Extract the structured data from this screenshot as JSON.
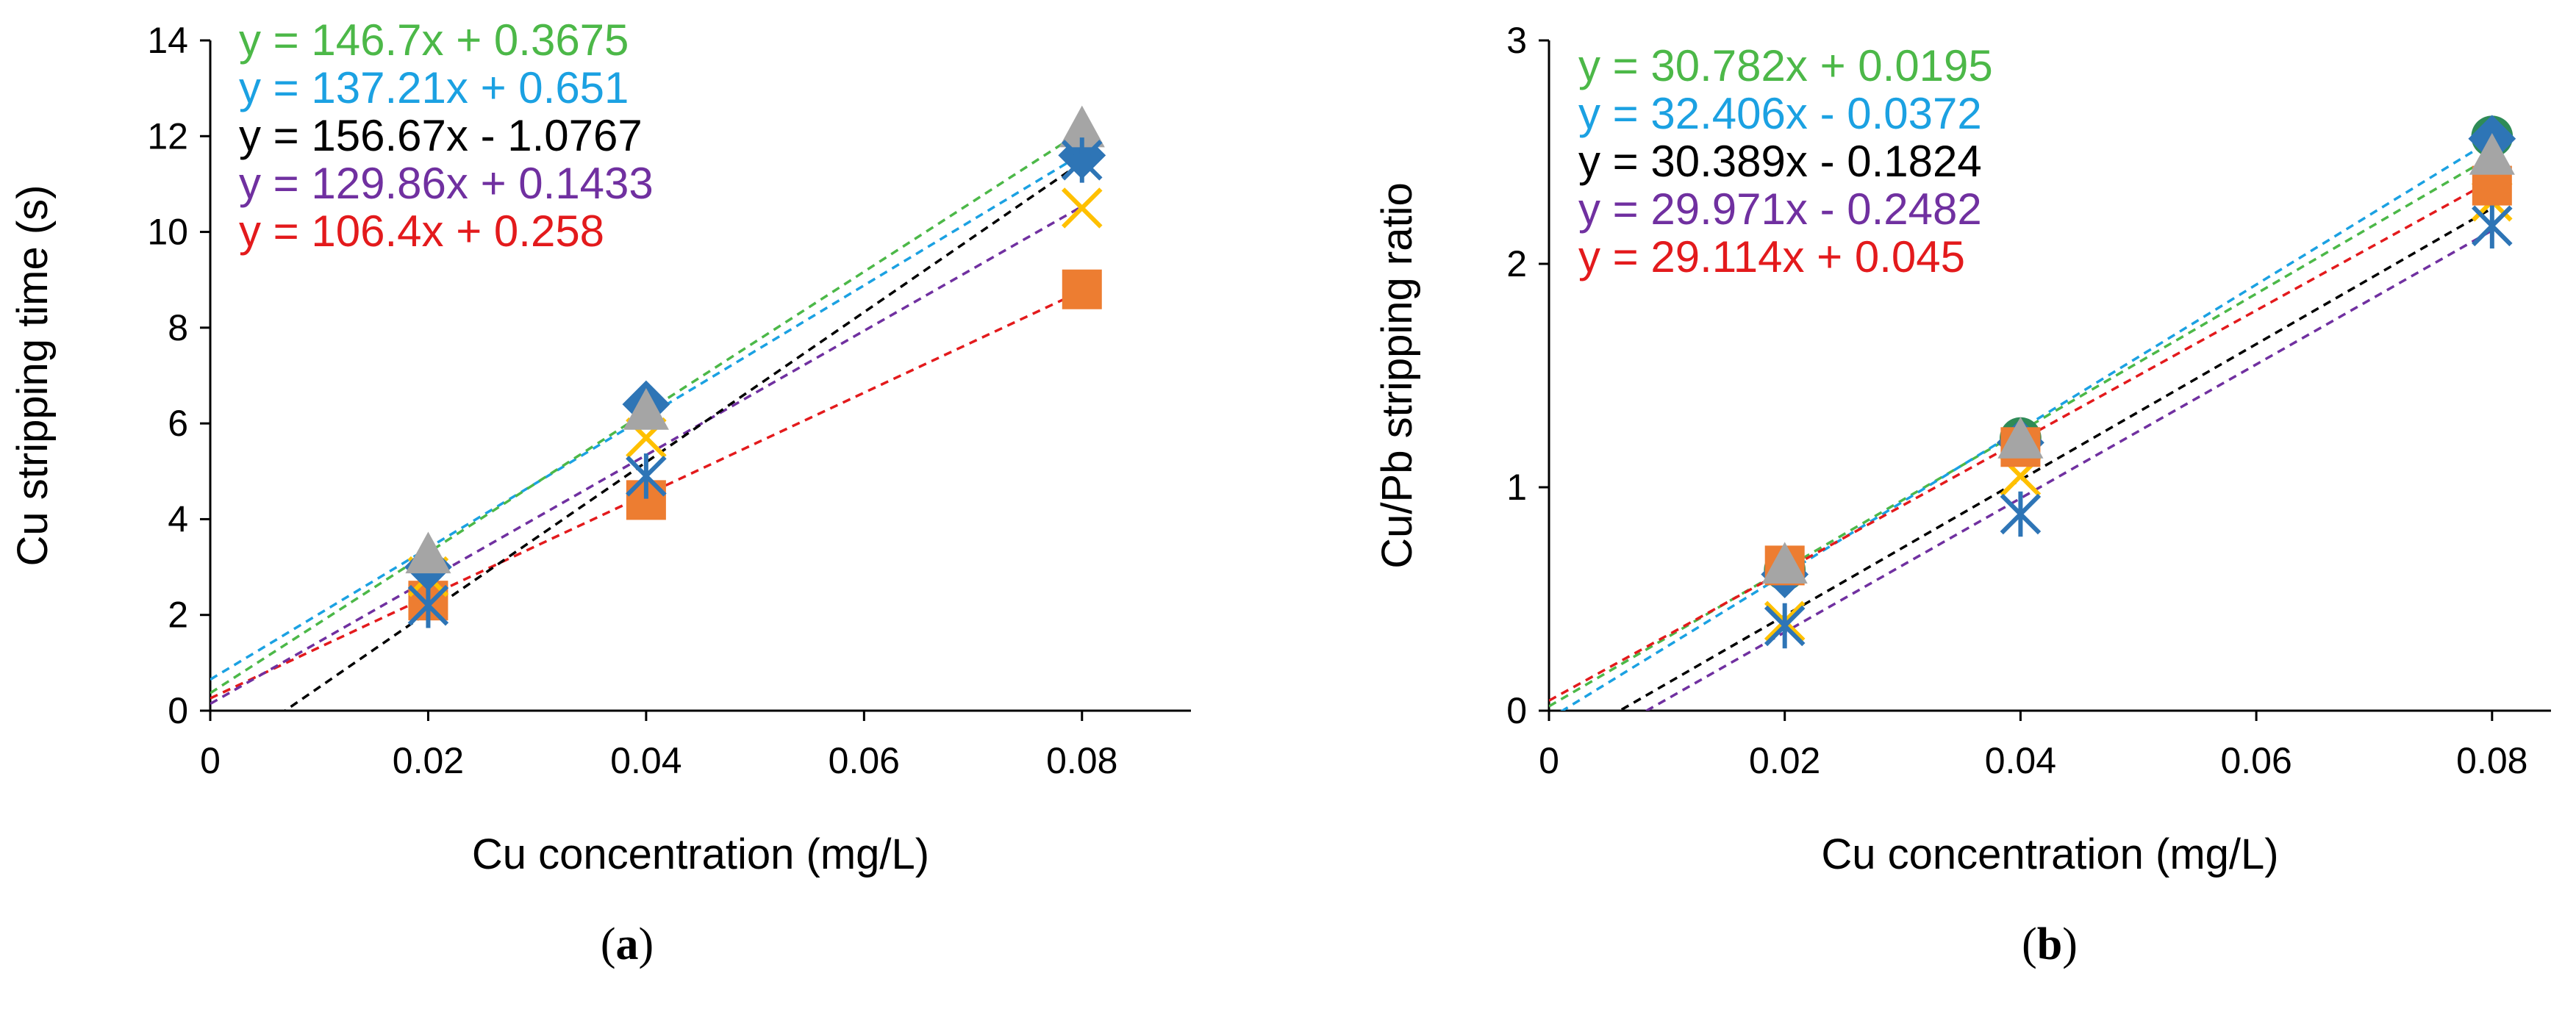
{
  "chart_data": [
    {
      "type": "scatter",
      "panel": "a",
      "caption": {
        "open": "(",
        "letter": "a",
        "close": ")"
      },
      "xlabel": "Cu concentration (mg/L)",
      "ylabel": "Cu stripping time (s)",
      "xlim": [
        0,
        0.09
      ],
      "ylim": [
        0,
        14
      ],
      "xticks": [
        0,
        0.02,
        0.04,
        0.06,
        0.08
      ],
      "xtick_labels": [
        "0",
        "0.02",
        "0.04",
        "0.06",
        "0.08"
      ],
      "yticks": [
        0,
        2,
        4,
        6,
        8,
        10,
        12,
        14
      ],
      "ytick_labels": [
        "0",
        "2",
        "4",
        "6",
        "8",
        "10",
        "12",
        "14"
      ],
      "x": [
        0.02,
        0.04,
        0.08
      ],
      "series": [
        {
          "name": "orange squares",
          "marker": "square",
          "color": "#ED7D31",
          "line_color": "#E31A1C",
          "values": [
            2.3,
            4.4,
            8.8
          ],
          "fit": {
            "slope": 106.4,
            "intercept": 0.258
          },
          "equation": "y = 106.4x + 0.258"
        },
        {
          "name": "yellow crosses",
          "marker": "x",
          "color": "#FFC000",
          "line_color": "#7030A0",
          "values": [
            2.8,
            5.7,
            10.5
          ],
          "fit": {
            "slope": 129.86,
            "intercept": 0.1433
          },
          "equation": "y = 129.86x + 0.1433"
        },
        {
          "name": "blue diamonds",
          "marker": "diamond",
          "color": "#2E75B6",
          "line_color": "#1BA1E2",
          "values": [
            3.0,
            6.4,
            11.6
          ],
          "fit": {
            "slope": 137.21,
            "intercept": 0.651
          },
          "equation": "y = 137.21x + 0.651"
        },
        {
          "name": "grey triangles",
          "marker": "triangle",
          "color": "#A5A5A5",
          "line_color": "#4CB848",
          "values": [
            3.2,
            6.2,
            12.1
          ],
          "fit": {
            "slope": 146.7,
            "intercept": 0.3675
          },
          "equation": "y = 146.7x + 0.3675"
        },
        {
          "name": "blue stars",
          "marker": "star",
          "color": "#2E75B6",
          "line_color": "#000000",
          "values": [
            2.2,
            4.9,
            11.5
          ],
          "fit": {
            "slope": 156.67,
            "intercept": -1.0767
          },
          "equation": "y = 156.67x - 1.0767"
        }
      ],
      "legend_order": [
        3,
        2,
        4,
        1,
        0
      ]
    },
    {
      "type": "scatter",
      "panel": "b",
      "caption": {
        "open": "(",
        "letter": "b",
        "close": ")"
      },
      "xlabel": "Cu concentration (mg/L)",
      "ylabel": "Cu/Pb stripping ratio",
      "xlim": [
        0,
        0.085
      ],
      "ylim": [
        0,
        3
      ],
      "xticks": [
        0,
        0.02,
        0.04,
        0.06,
        0.08
      ],
      "xtick_labels": [
        "0",
        "0.02",
        "0.04",
        "0.06",
        "0.08"
      ],
      "yticks": [
        0,
        1,
        2,
        3
      ],
      "ytick_labels": [
        "0",
        "1",
        "2",
        "3"
      ],
      "x": [
        0.02,
        0.04,
        0.08
      ],
      "series": [
        {
          "name": "green circles",
          "marker": "circle",
          "color": "#2E8B57",
          "line_color": "#4CB848",
          "values": [
            0.63,
            1.22,
            2.57
          ],
          "fit": {
            "slope": 30.782,
            "intercept": 0.0195
          },
          "equation": "y = 30.782x + 0.0195"
        },
        {
          "name": "blue diamonds",
          "marker": "diamond",
          "color": "#2E75B6",
          "line_color": "#1BA1E2",
          "values": [
            0.61,
            1.2,
            2.56
          ],
          "fit": {
            "slope": 32.406,
            "intercept": -0.0372
          },
          "equation": "y = 32.406x - 0.0372"
        },
        {
          "name": "yellow crosses",
          "marker": "x",
          "color": "#FFC000",
          "line_color": "#000000",
          "values": [
            0.4,
            1.05,
            2.28
          ],
          "fit": {
            "slope": 30.389,
            "intercept": -0.1824
          },
          "equation": "y = 30.389x - 0.1824"
        },
        {
          "name": "blue stars",
          "marker": "star",
          "color": "#2E75B6",
          "line_color": "#7030A0",
          "values": [
            0.38,
            0.88,
            2.17
          ],
          "fit": {
            "slope": 29.971,
            "intercept": -0.2482
          },
          "equation": "y = 29.971x - 0.2482"
        },
        {
          "name": "orange squares",
          "marker": "square",
          "color": "#ED7D31",
          "line_color": "#E31A1C",
          "values": [
            0.65,
            1.18,
            2.35
          ],
          "fit": {
            "slope": 29.114,
            "intercept": 0.045
          },
          "equation": "y = 29.114x + 0.045"
        },
        {
          "name": "grey triangles",
          "marker": "triangle",
          "color": "#A5A5A5",
          "line_color": "#4CB848",
          "values": [
            0.64,
            1.2,
            2.47
          ],
          "fit": null,
          "equation": ""
        }
      ],
      "legend_order": [
        0,
        1,
        2,
        3,
        4
      ]
    }
  ]
}
